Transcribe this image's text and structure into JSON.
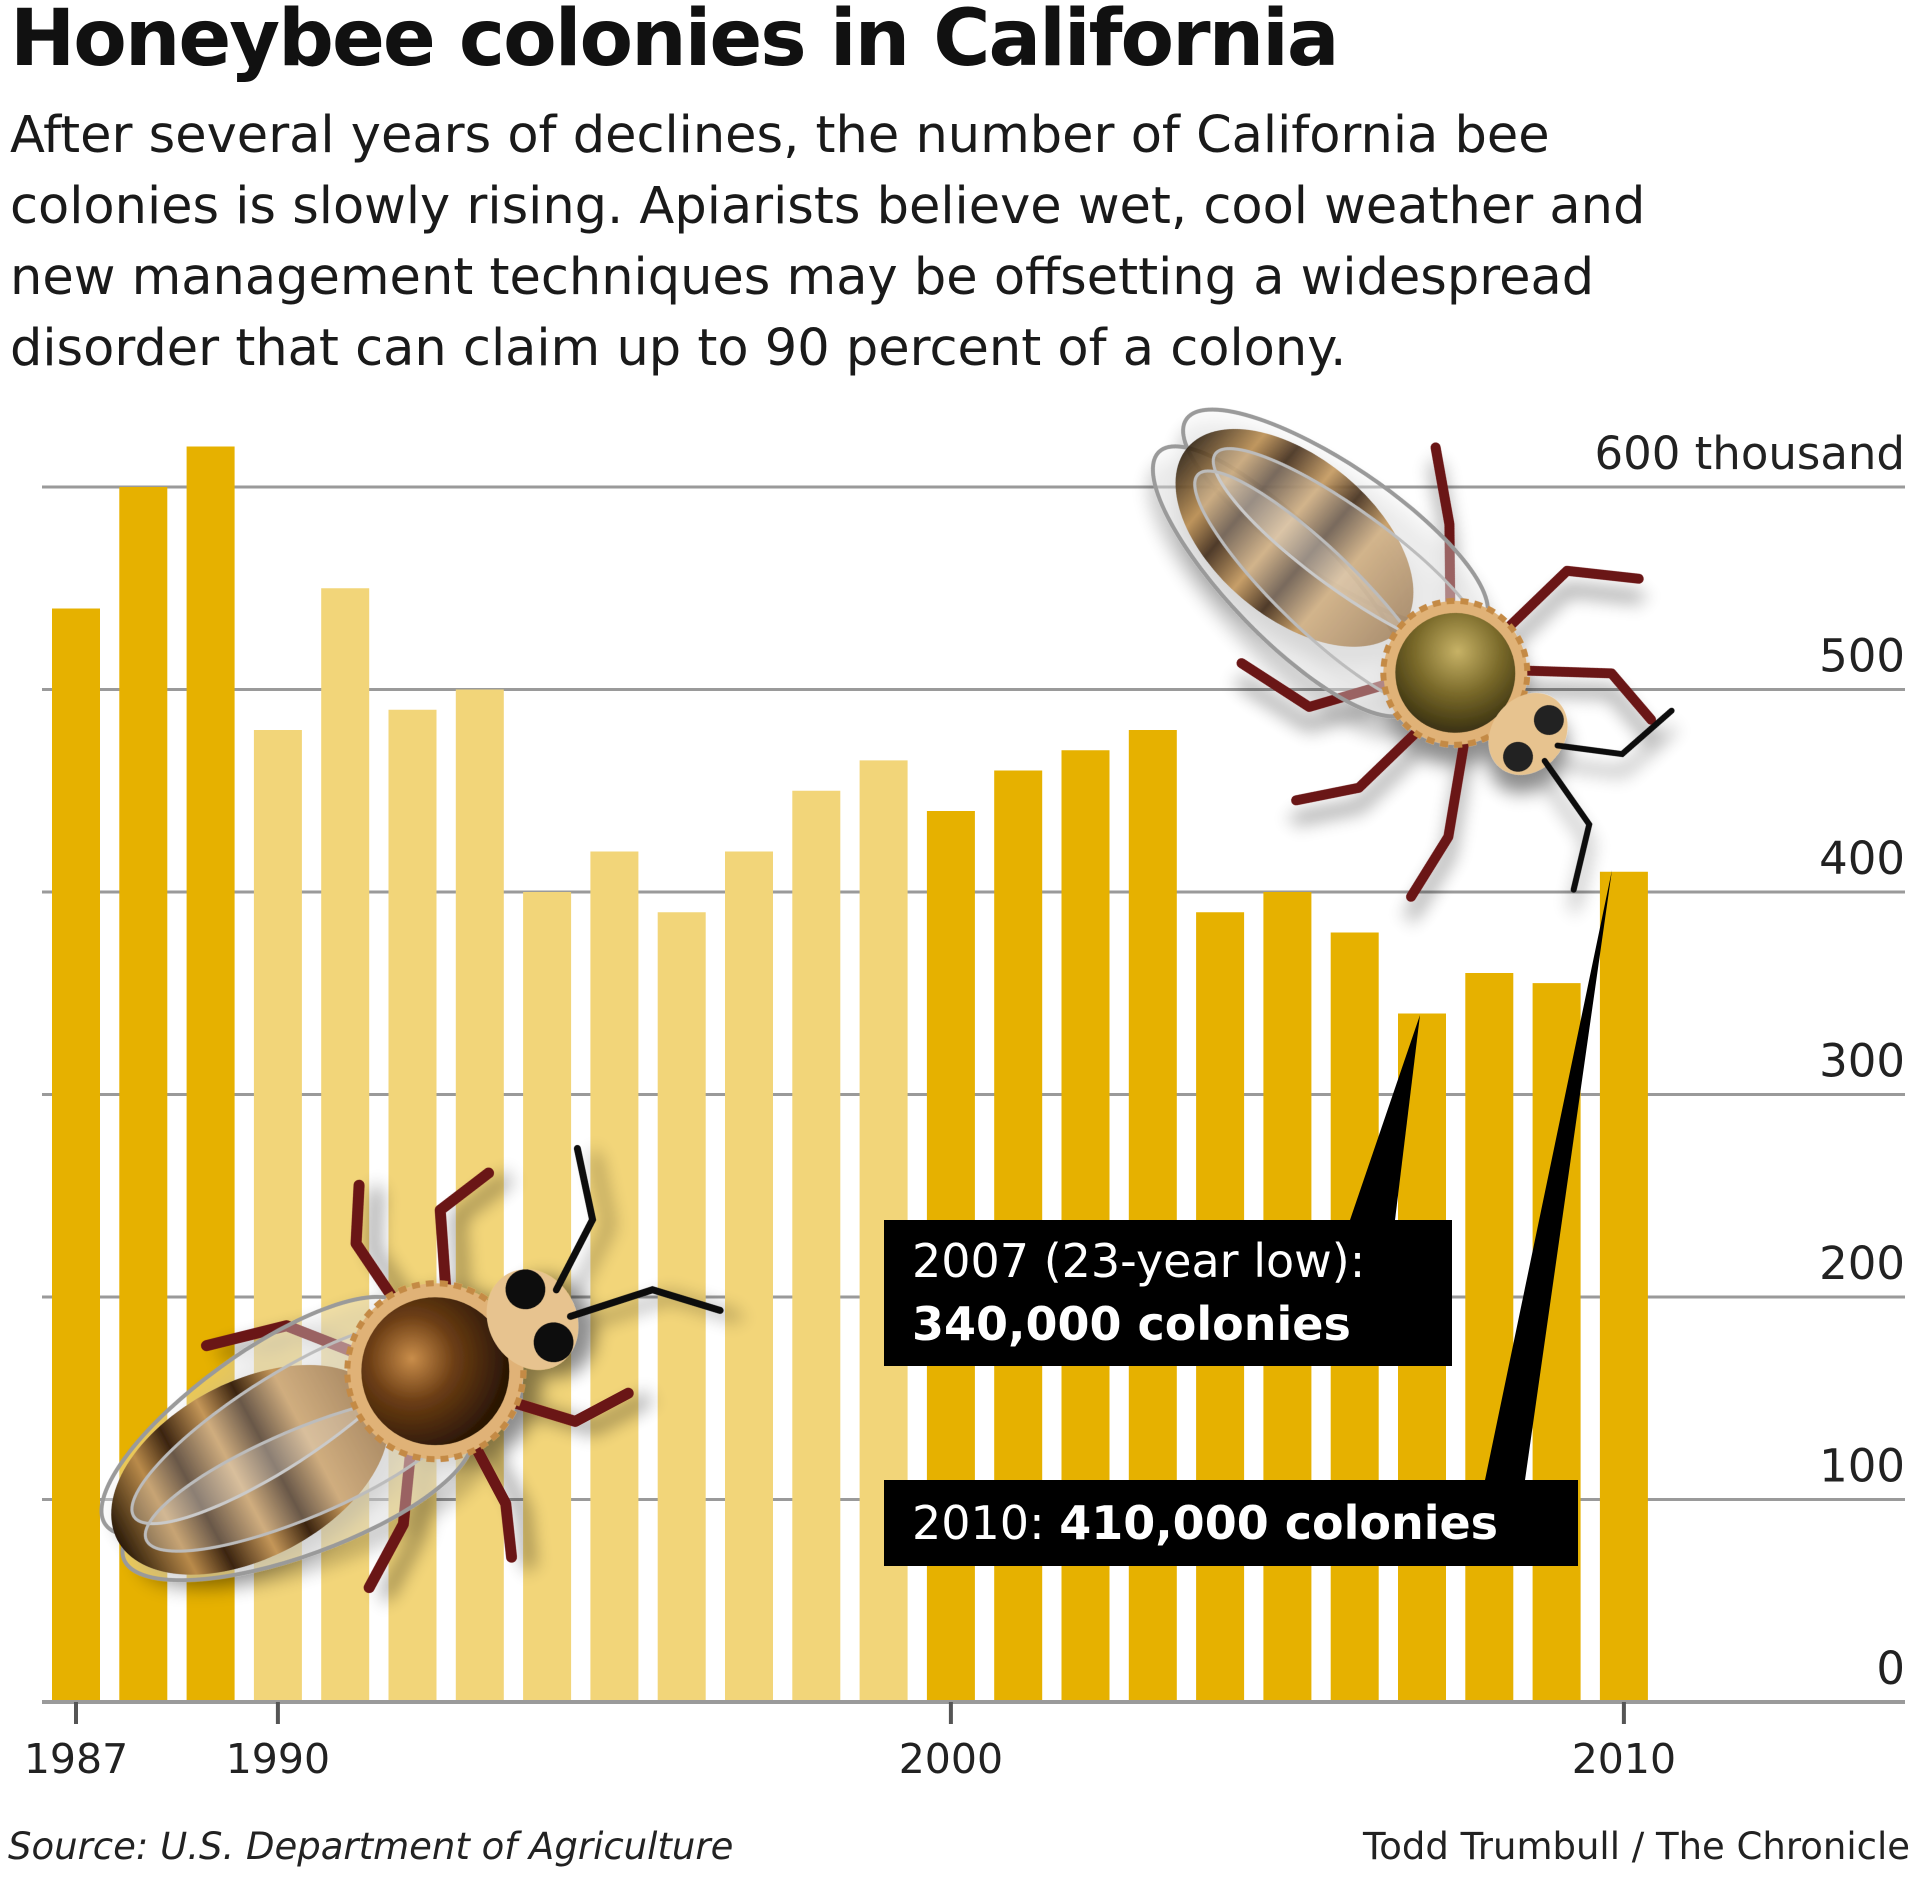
{
  "title": "Honeybee colonies in California",
  "subtitle_lines": [
    "After several years of declines, the number of California bee",
    "colonies is slowly rising. Apiarists believe wet, cool weather and",
    "new management techniques may be offsetting a widespread",
    "disorder that can claim up to 90 percent of a colony."
  ],
  "source": "Source: U.S. Department of Agriculture",
  "credit": "Todd Trumbull / The Chronicle",
  "colors": {
    "bar_dark": "#e6b100",
    "bar_light": "#f2d579",
    "gridline": "#9a9a9a",
    "callout_bg": "#000000",
    "callout_text": "#ffffff"
  },
  "chart_data": {
    "type": "bar",
    "x": [
      1987,
      1988,
      1989,
      1990,
      1991,
      1992,
      1993,
      1994,
      1995,
      1996,
      1997,
      1998,
      1999,
      2000,
      2001,
      2002,
      2003,
      2004,
      2005,
      2006,
      2007,
      2008,
      2009,
      2010
    ],
    "values": [
      540,
      600,
      620,
      480,
      550,
      490,
      500,
      400,
      420,
      390,
      420,
      450,
      465,
      440,
      460,
      470,
      480,
      390,
      400,
      380,
      340,
      360,
      355,
      410
    ],
    "value_unit": "thousand colonies",
    "bar_shade": [
      "dark",
      "dark",
      "dark",
      "light",
      "light",
      "light",
      "light",
      "light",
      "light",
      "light",
      "light",
      "light",
      "light",
      "dark",
      "dark",
      "dark",
      "dark",
      "dark",
      "dark",
      "dark",
      "dark",
      "dark",
      "dark",
      "dark"
    ],
    "ylim": [
      0,
      600
    ],
    "yticks": [
      0,
      100,
      200,
      300,
      400,
      500,
      600
    ],
    "ytick_labels": [
      "0",
      "100",
      "200",
      "300",
      "400",
      "500",
      "600 thousand"
    ],
    "xticks": [
      1987,
      1990,
      2000,
      2010
    ],
    "xtick_labels": [
      "1987",
      "1990",
      "2000",
      "2010"
    ],
    "grid": true,
    "annotations": [
      {
        "year": 2007,
        "line1": "2007 (23-year low):",
        "line2": "340,000 colonies"
      },
      {
        "year": 2010,
        "prefix": "2010: ",
        "bold": "410,000 colonies"
      }
    ]
  },
  "illustrations": [
    "honeybee-illustration",
    "honeybee-illustration"
  ]
}
